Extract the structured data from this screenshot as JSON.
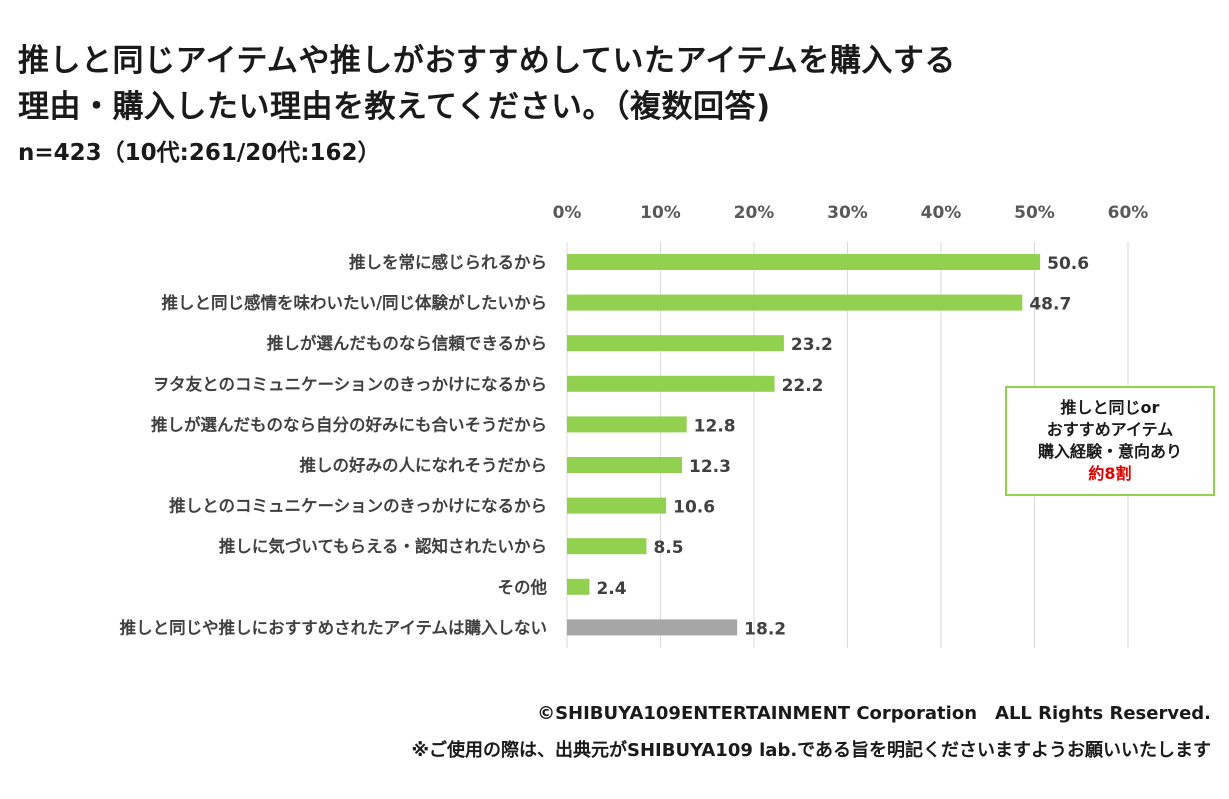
{
  "title": {
    "line1": "推しと同じアイテムや推しがおすすめしていたアイテムを購入する",
    "line2": "理由・購入したい理由を教えてください。（複数回答)"
  },
  "subtitle": "n=423（10代:261/20代:162）",
  "callout": {
    "line1": "推しと同じor",
    "line2": "おすすめアイテム",
    "line3": "購入経験・意向あり",
    "line4": "約8割"
  },
  "footer": {
    "copyright": "©SHIBUYA109ENTERTAINMENT Corporation　ALL Rights Reserved.",
    "notice": "※ご使用の際は、出典元がSHIBUYA109 lab.である旨を明記くださいますようお願いいたします"
  },
  "colors": {
    "bar": "#92d050",
    "bar_none": "#a6a6a6",
    "grid": "#d9d9d9",
    "accent_red": "#e00000"
  },
  "chart_data": {
    "type": "bar",
    "orientation": "horizontal",
    "categories": [
      "推しを常に感じられるから",
      "推しと同じ感情を味わいたい/同じ体験がしたいから",
      "推しが選んだものなら信頼できるから",
      "ヲタ友とのコミュニケーションのきっかけになるから",
      "推しが選んだものなら自分の好みにも合いそうだから",
      "推しの好みの人になれそうだから",
      "推しとのコミュニケーションのきっかけになるから",
      "推しに気づいてもらえる・認知されたいから",
      "その他",
      "推しと同じや推しにおすすめされたアイテムは購入しない"
    ],
    "values": [
      50.6,
      48.7,
      23.2,
      22.2,
      12.8,
      12.3,
      10.6,
      8.5,
      2.4,
      18.2
    ],
    "value_labels": [
      "50.6",
      "48.7",
      "23.2",
      "22.2",
      "12.8",
      "12.3",
      "10.6",
      "8.5",
      "2.4",
      "18.2"
    ],
    "highlight_gray_index": 9,
    "xticks": [
      0,
      10,
      20,
      30,
      40,
      50,
      60
    ],
    "xtick_labels": [
      "0%",
      "10%",
      "20%",
      "30%",
      "40%",
      "50%",
      "60%"
    ],
    "xlim": [
      0,
      60
    ],
    "axis_position": "top",
    "grid": true,
    "legend": "none",
    "unit": "%"
  }
}
